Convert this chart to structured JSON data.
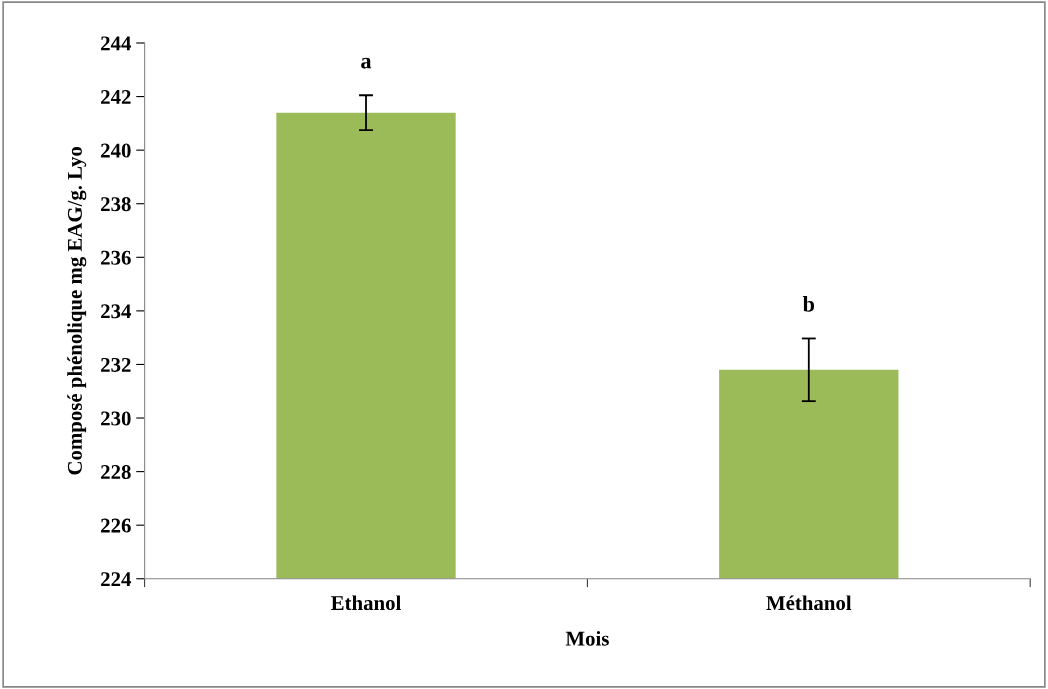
{
  "chart_data": {
    "type": "bar",
    "xlabel": "Mois",
    "ylabel": "Composé phénolique mg EAG/g. Lyo",
    "categories": [
      "Ethanol",
      "Méthanol"
    ],
    "values": [
      241.4,
      231.8
    ],
    "errors": [
      0.65,
      1.17
    ],
    "color": "#9bbb59",
    "ylim": [
      224,
      244
    ],
    "yticks": [
      224,
      226,
      228,
      230,
      232,
      234,
      236,
      238,
      240,
      242,
      244
    ],
    "grid": false,
    "legend": false,
    "annotations": [
      "a",
      "b"
    ]
  }
}
